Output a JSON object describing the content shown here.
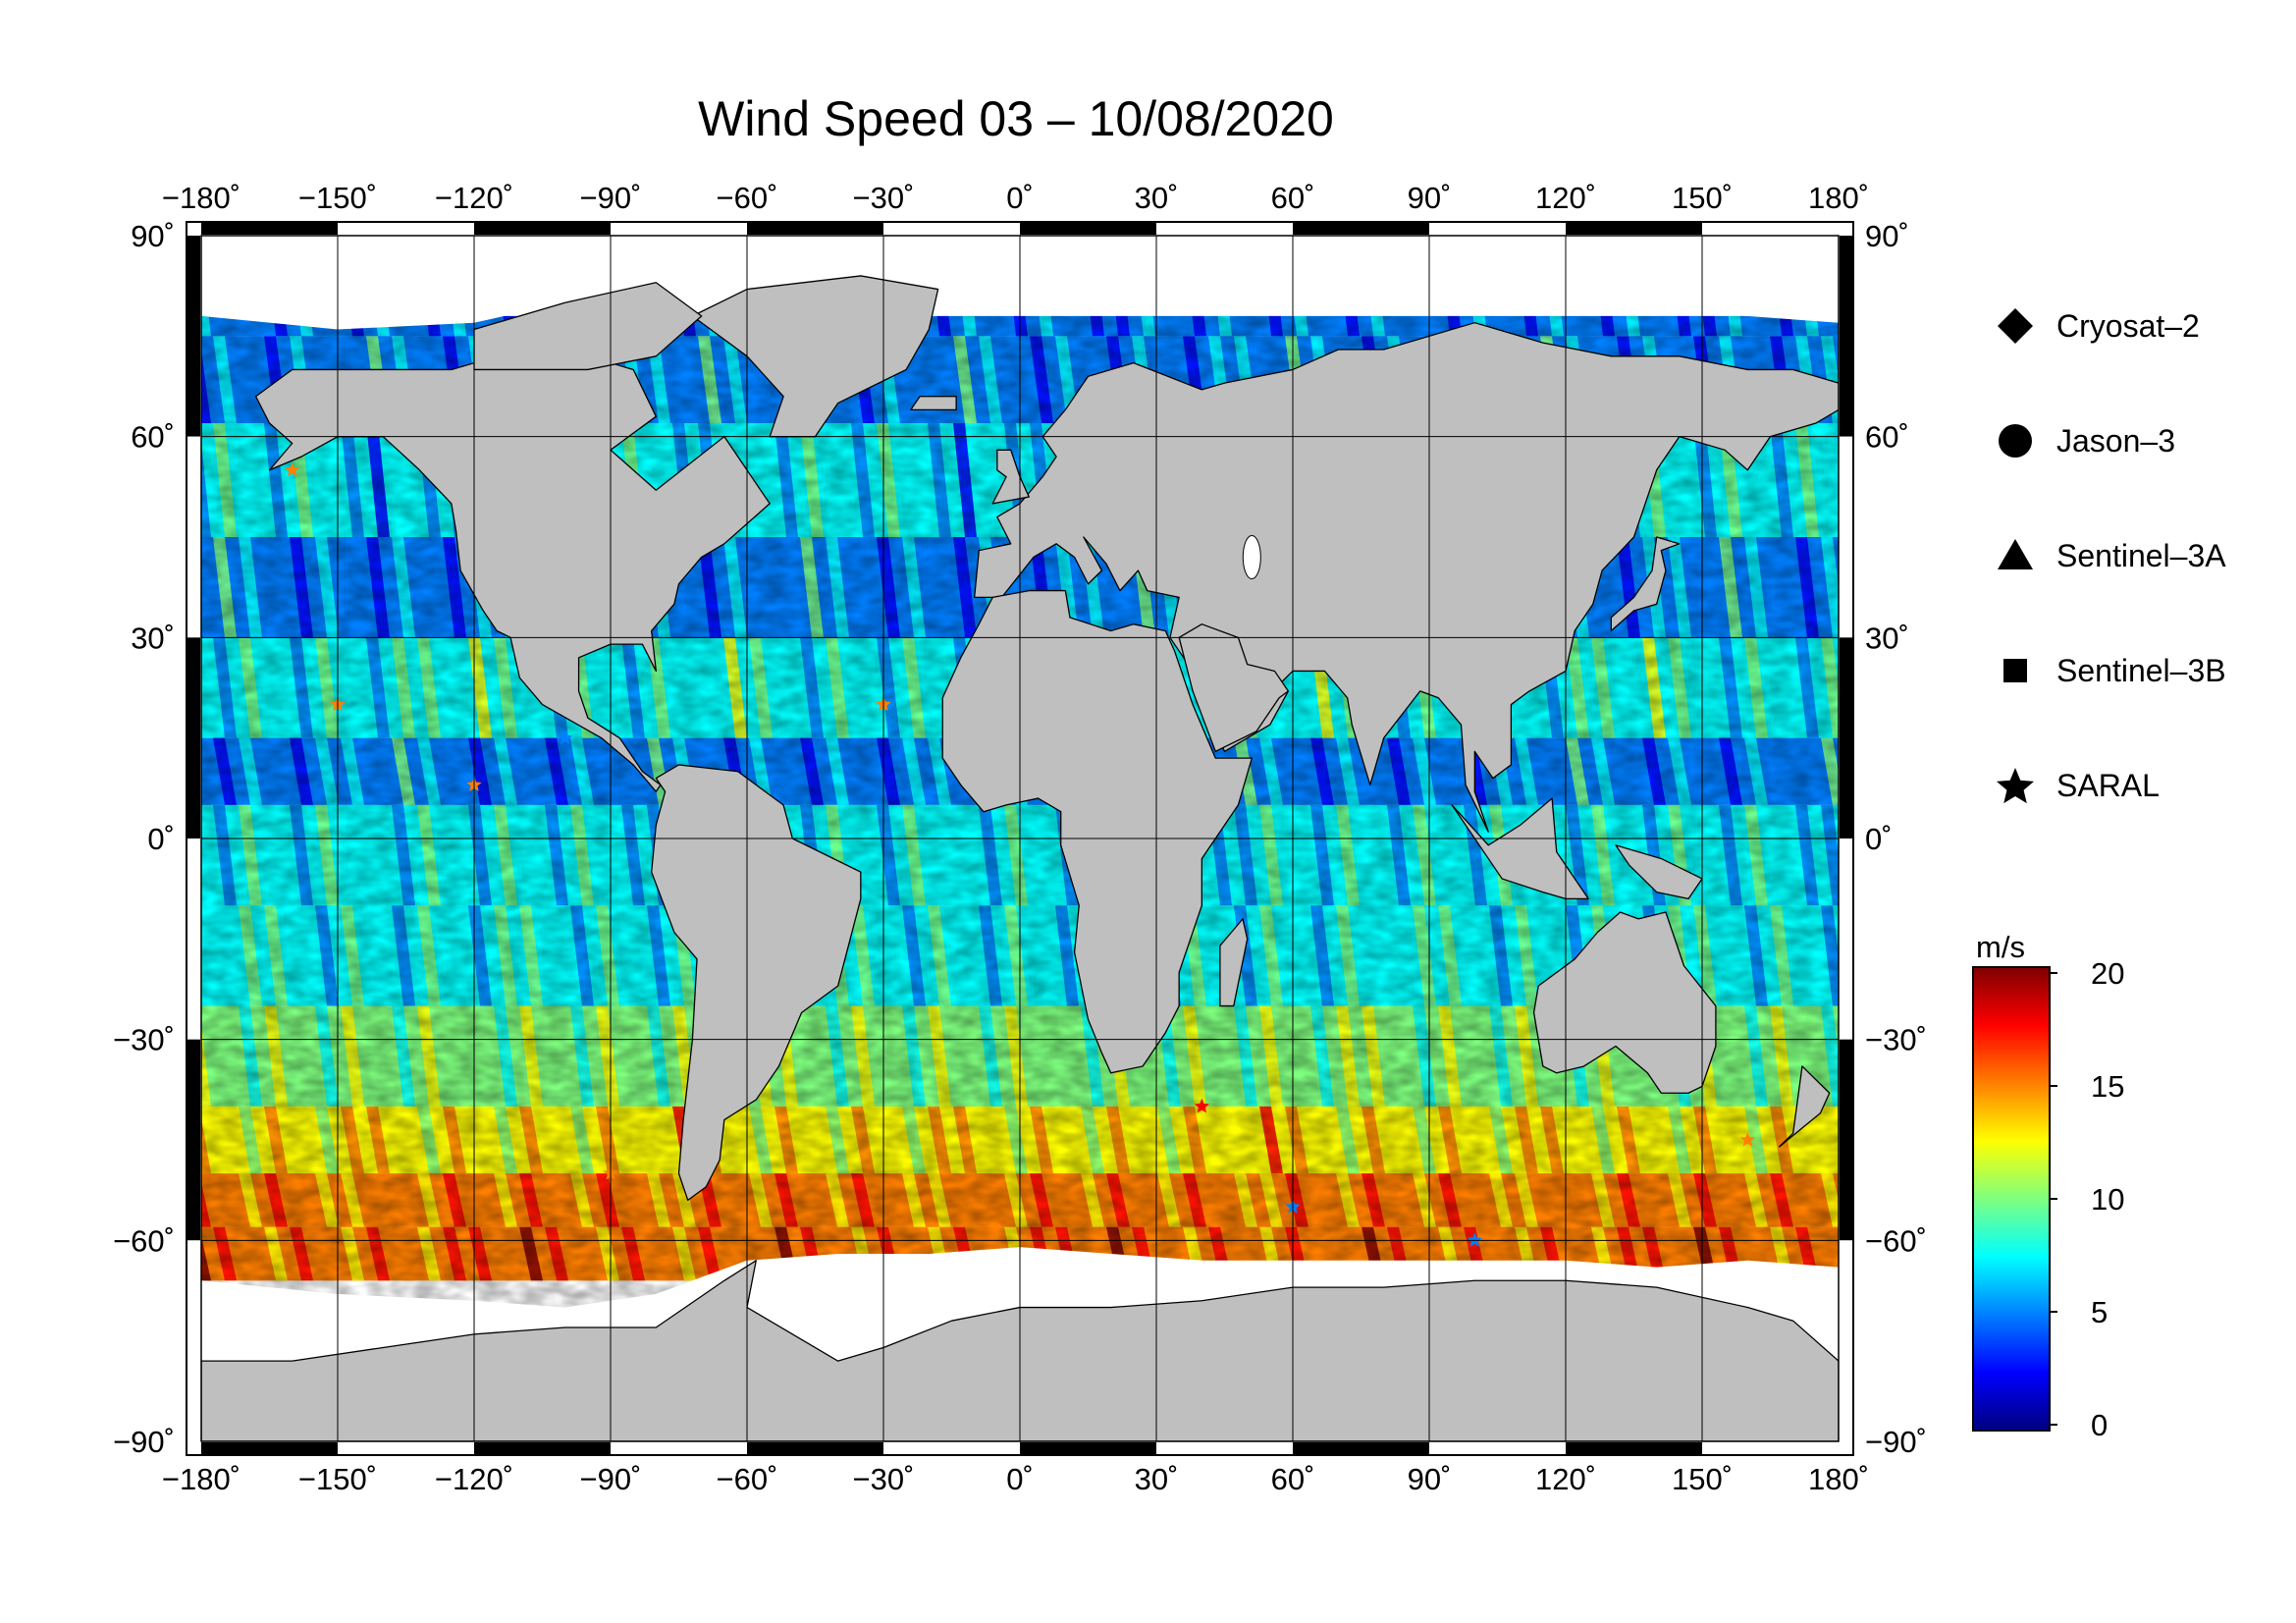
{
  "title": "Wind Speed 03 – 10/08/2020",
  "map": {
    "projection": "equirectangular",
    "lon_range": [
      -180,
      180
    ],
    "lat_range": [
      -90,
      90
    ],
    "lon_ticks": [
      "−180˚",
      "−150˚",
      "−120˚",
      "−90˚",
      "−60˚",
      "−30˚",
      "0˚",
      "30˚",
      "60˚",
      "90˚",
      "120˚",
      "150˚",
      "180˚"
    ],
    "lat_ticks": [
      "90˚",
      "60˚",
      "30˚",
      "0˚",
      "−30˚",
      "−60˚",
      "−90˚"
    ],
    "land_color": "#bfbfbf",
    "ice_color": "#ffffff",
    "grid": true
  },
  "legend": {
    "items": [
      {
        "label": "Cryosat–2",
        "icon": "diamond-icon"
      },
      {
        "label": "Jason–3",
        "icon": "circle-icon"
      },
      {
        "label": "Sentinel–3A",
        "icon": "triangle-icon"
      },
      {
        "label": "Sentinel–3B",
        "icon": "square-icon"
      },
      {
        "label": "SARAL",
        "icon": "star-icon"
      }
    ]
  },
  "colorbar": {
    "unit": "m/s",
    "min": 0,
    "max": 20,
    "tick_labels": [
      "20",
      "15",
      "10",
      "5",
      "0"
    ],
    "colors": [
      "#00007f",
      "#0000ff",
      "#007fff",
      "#00ffff",
      "#7fff7f",
      "#ffff00",
      "#ff7f00",
      "#ff0000",
      "#7f0000"
    ]
  }
}
